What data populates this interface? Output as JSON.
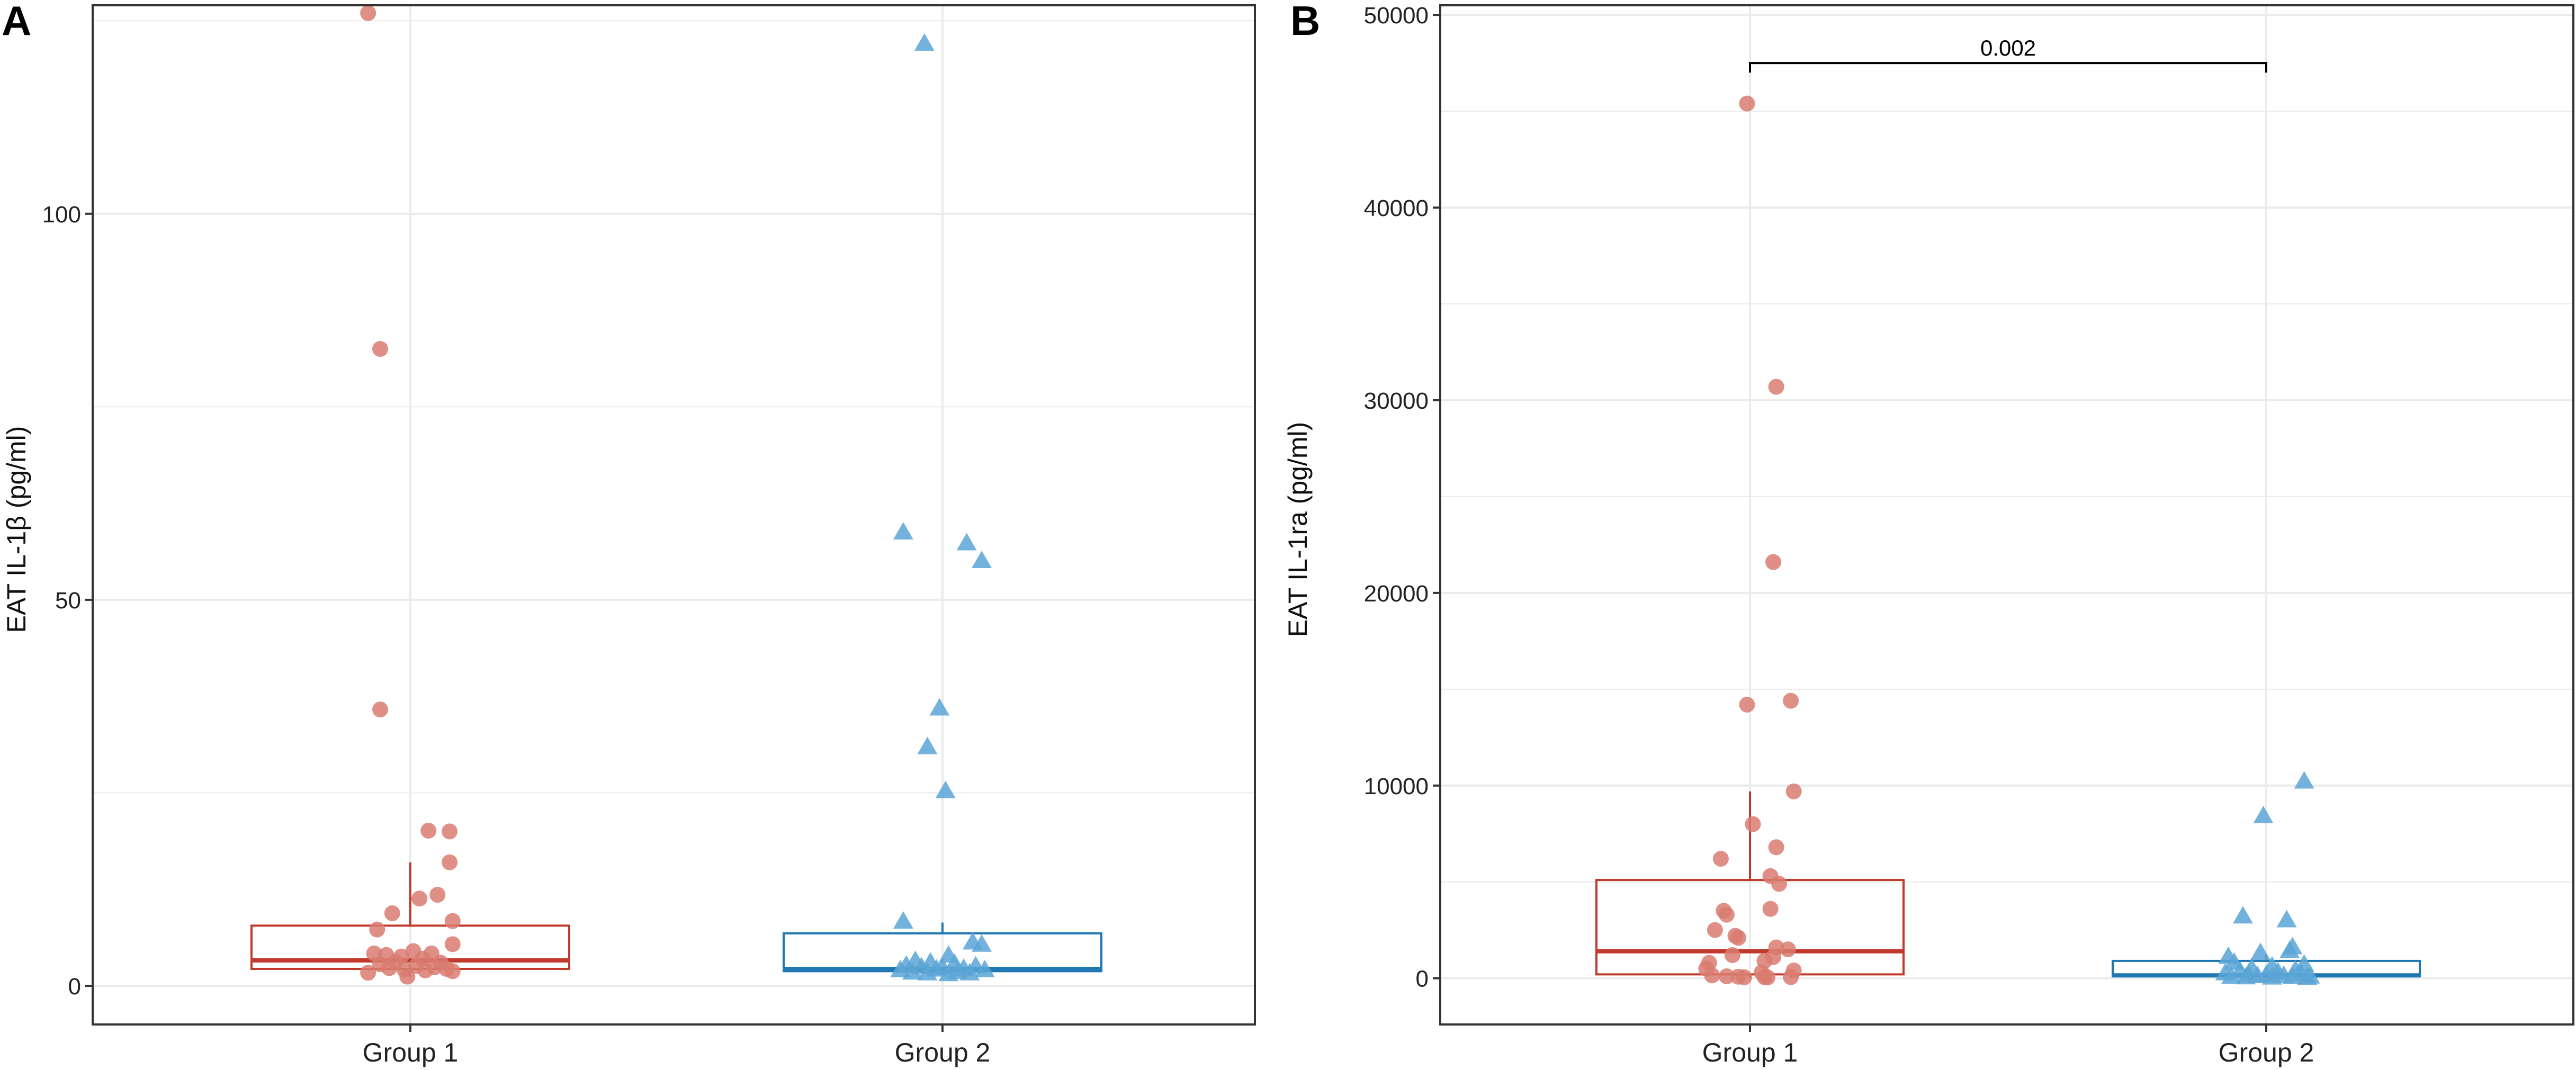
{
  "colors": {
    "group1": "#c0392b",
    "group1_point": "#d97b70",
    "group2": "#1f77b4",
    "group2_point": "#5aa5d6",
    "grid": "#ebebeb",
    "frame": "#333333",
    "text": "#222222",
    "bracket": "#000000"
  },
  "chart_data": [
    {
      "panel_label": "A",
      "type": "boxplot",
      "ylabel": "EAT IL-1β (pg/ml)",
      "ylim": [
        -5,
        127
      ],
      "yticks": [
        0,
        50,
        100
      ],
      "categories": [
        "Group 1",
        "Group 2"
      ],
      "series": [
        {
          "name": "Group 1",
          "marker": "circle",
          "box": {
            "q1": 2.2,
            "median": 3.3,
            "q3": 7.8,
            "whisker_low": 1.2,
            "whisker_high": 16
          },
          "points": [
            {
              "dx": -0.14,
              "y": 126
            },
            {
              "dx": -0.1,
              "y": 82.5
            },
            {
              "dx": -0.1,
              "y": 35.8
            },
            {
              "dx": 0.06,
              "y": 20.1
            },
            {
              "dx": 0.13,
              "y": 20.0
            },
            {
              "dx": 0.13,
              "y": 16.0
            },
            {
              "dx": 0.09,
              "y": 11.8
            },
            {
              "dx": 0.03,
              "y": 11.3
            },
            {
              "dx": -0.06,
              "y": 9.4
            },
            {
              "dx": 0.14,
              "y": 8.4
            },
            {
              "dx": -0.11,
              "y": 7.3
            },
            {
              "dx": 0.14,
              "y": 5.4
            },
            {
              "dx": -0.12,
              "y": 4.2
            },
            {
              "dx": -0.08,
              "y": 4.0
            },
            {
              "dx": 0.01,
              "y": 4.5
            },
            {
              "dx": 0.07,
              "y": 4.2
            },
            {
              "dx": -0.03,
              "y": 3.8
            },
            {
              "dx": 0.04,
              "y": 3.5
            },
            {
              "dx": -0.05,
              "y": 3.1
            },
            {
              "dx": 0.1,
              "y": 3.0
            },
            {
              "dx": -0.1,
              "y": 2.8
            },
            {
              "dx": 0.02,
              "y": 2.6
            },
            {
              "dx": -0.07,
              "y": 2.3
            },
            {
              "dx": 0.08,
              "y": 2.4
            },
            {
              "dx": 0.12,
              "y": 2.2
            },
            {
              "dx": -0.02,
              "y": 2.1
            },
            {
              "dx": 0.05,
              "y": 2.0
            },
            {
              "dx": 0.14,
              "y": 1.9
            },
            {
              "dx": -0.14,
              "y": 1.7
            },
            {
              "dx": -0.01,
              "y": 1.2
            }
          ]
        },
        {
          "name": "Group 2",
          "marker": "triangle",
          "box": {
            "q1": 1.9,
            "median": 2.2,
            "q3": 6.8,
            "whisker_low": 1.5,
            "whisker_high": 8.2
          },
          "points": [
            {
              "dx": -0.06,
              "y": 122
            },
            {
              "dx": -0.13,
              "y": 58.7
            },
            {
              "dx": 0.08,
              "y": 57.3
            },
            {
              "dx": 0.13,
              "y": 55.0
            },
            {
              "dx": -0.01,
              "y": 35.9
            },
            {
              "dx": -0.05,
              "y": 30.9
            },
            {
              "dx": 0.01,
              "y": 25.2
            },
            {
              "dx": -0.13,
              "y": 8.3
            },
            {
              "dx": 0.1,
              "y": 5.6
            },
            {
              "dx": 0.13,
              "y": 5.3
            },
            {
              "dx": 0.02,
              "y": 3.9
            },
            {
              "dx": -0.09,
              "y": 3.2
            },
            {
              "dx": -0.04,
              "y": 3.0
            },
            {
              "dx": 0.04,
              "y": 2.8
            },
            {
              "dx": -0.12,
              "y": 2.6
            },
            {
              "dx": 0.11,
              "y": 2.5
            },
            {
              "dx": -0.07,
              "y": 2.4
            },
            {
              "dx": 0.0,
              "y": 2.3
            },
            {
              "dx": 0.07,
              "y": 2.2
            },
            {
              "dx": -0.02,
              "y": 2.1
            },
            {
              "dx": -0.14,
              "y": 2.0
            },
            {
              "dx": 0.14,
              "y": 2.0
            },
            {
              "dx": 0.05,
              "y": 1.8
            },
            {
              "dx": -0.1,
              "y": 1.7
            },
            {
              "dx": 0.09,
              "y": 1.6
            },
            {
              "dx": -0.05,
              "y": 1.6
            },
            {
              "dx": 0.02,
              "y": 1.5
            }
          ]
        }
      ]
    },
    {
      "panel_label": "B",
      "type": "boxplot",
      "ylabel": "EAT IL-1ra (pg/ml)",
      "ylim": [
        -2400,
        50500
      ],
      "yticks": [
        0,
        10000,
        20000,
        30000,
        40000,
        50000
      ],
      "categories": [
        "Group 1",
        "Group 2"
      ],
      "annotation": {
        "text": "0.002",
        "y": 47500,
        "from": 0,
        "to": 1
      },
      "series": [
        {
          "name": "Group 1",
          "marker": "circle",
          "box": {
            "q1": 200,
            "median": 1400,
            "q3": 5100,
            "whisker_low": 0,
            "whisker_high": 9700
          },
          "points": [
            {
              "dx": -0.01,
              "y": 45400
            },
            {
              "dx": 0.09,
              "y": 30700
            },
            {
              "dx": 0.08,
              "y": 21600
            },
            {
              "dx": 0.14,
              "y": 14400
            },
            {
              "dx": -0.01,
              "y": 14200
            },
            {
              "dx": 0.15,
              "y": 9700
            },
            {
              "dx": 0.01,
              "y": 8000
            },
            {
              "dx": 0.09,
              "y": 6800
            },
            {
              "dx": -0.1,
              "y": 6200
            },
            {
              "dx": 0.07,
              "y": 5300
            },
            {
              "dx": 0.1,
              "y": 4900
            },
            {
              "dx": 0.07,
              "y": 3600
            },
            {
              "dx": -0.09,
              "y": 3500
            },
            {
              "dx": -0.08,
              "y": 3300
            },
            {
              "dx": -0.12,
              "y": 2500
            },
            {
              "dx": -0.05,
              "y": 2200
            },
            {
              "dx": -0.04,
              "y": 2100
            },
            {
              "dx": 0.09,
              "y": 1600
            },
            {
              "dx": 0.13,
              "y": 1500
            },
            {
              "dx": -0.06,
              "y": 1200
            },
            {
              "dx": 0.08,
              "y": 1100
            },
            {
              "dx": -0.14,
              "y": 800
            },
            {
              "dx": 0.05,
              "y": 900
            },
            {
              "dx": -0.15,
              "y": 500
            },
            {
              "dx": 0.15,
              "y": 400
            },
            {
              "dx": 0.04,
              "y": 300
            },
            {
              "dx": -0.13,
              "y": 150
            },
            {
              "dx": -0.08,
              "y": 100
            },
            {
              "dx": -0.04,
              "y": 80
            },
            {
              "dx": 0.05,
              "y": 60
            },
            {
              "dx": 0.14,
              "y": 60
            },
            {
              "dx": -0.02,
              "y": 50
            },
            {
              "dx": 0.06,
              "y": 40
            }
          ]
        },
        {
          "name": "Group 2",
          "marker": "triangle",
          "box": {
            "q1": 100,
            "median": 150,
            "q3": 900,
            "whisker_low": 0,
            "whisker_high": 1200
          },
          "points": [
            {
              "dx": 0.13,
              "y": 10200
            },
            {
              "dx": -0.01,
              "y": 8400
            },
            {
              "dx": -0.08,
              "y": 3200
            },
            {
              "dx": 0.07,
              "y": 3000
            },
            {
              "dx": 0.09,
              "y": 1600
            },
            {
              "dx": 0.08,
              "y": 1400
            },
            {
              "dx": -0.02,
              "y": 1300
            },
            {
              "dx": -0.13,
              "y": 1100
            },
            {
              "dx": -0.11,
              "y": 800
            },
            {
              "dx": 0.13,
              "y": 700
            },
            {
              "dx": 0.02,
              "y": 600
            },
            {
              "dx": -0.05,
              "y": 500
            },
            {
              "dx": 0.1,
              "y": 400
            },
            {
              "dx": -0.09,
              "y": 350
            },
            {
              "dx": 0.04,
              "y": 300
            },
            {
              "dx": -0.14,
              "y": 250
            },
            {
              "dx": 0.12,
              "y": 200
            },
            {
              "dx": -0.06,
              "y": 180
            },
            {
              "dx": 0.0,
              "y": 150
            },
            {
              "dx": 0.06,
              "y": 120
            },
            {
              "dx": -0.03,
              "y": 100
            },
            {
              "dx": 0.15,
              "y": 80
            },
            {
              "dx": -0.12,
              "y": 60
            },
            {
              "dx": 0.09,
              "y": 50
            },
            {
              "dx": -0.07,
              "y": 40
            },
            {
              "dx": 0.02,
              "y": 30
            },
            {
              "dx": 0.14,
              "y": 20
            }
          ]
        }
      ]
    }
  ]
}
